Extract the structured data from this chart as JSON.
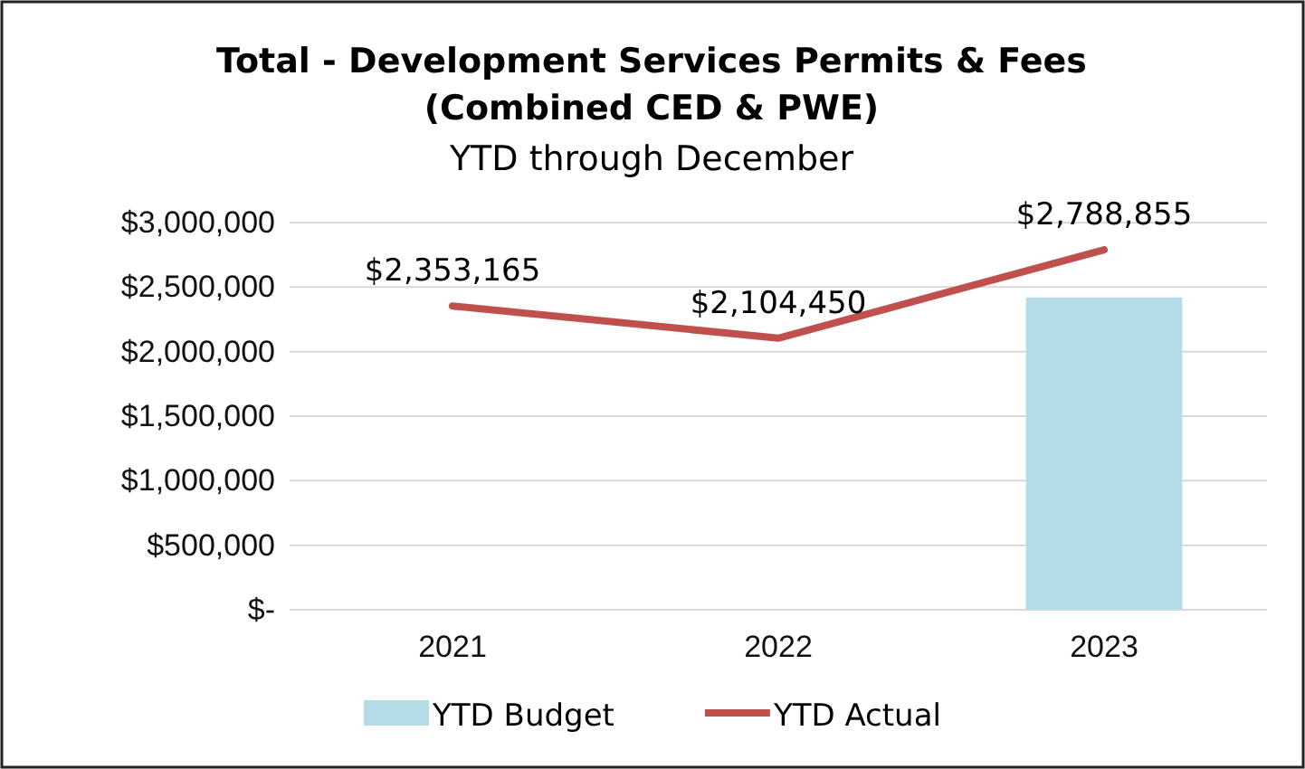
{
  "chart_data": {
    "type": "bar",
    "title": "Total - Development Services Permits & Fees\n(Combined CED & PWE)",
    "subtitle": "YTD through December",
    "categories": [
      "2021",
      "2022",
      "2023"
    ],
    "series": [
      {
        "name": "YTD Budget",
        "color": "#b4dce6",
        "values": [
          null,
          null,
          2420000
        ]
      },
      {
        "name": "YTD Actual",
        "type": "line",
        "color": "#c0504d",
        "values": [
          2353165,
          2104450,
          2788855
        ],
        "value_labels": [
          "$2,353,165",
          "$2,104,450",
          "$2,788,855"
        ]
      }
    ],
    "ylim": [
      0,
      3000000
    ],
    "yticks": [
      {
        "value": 0,
        "label": "$-"
      },
      {
        "value": 500000,
        "label": "$500,000"
      },
      {
        "value": 1000000,
        "label": "$1,000,000"
      },
      {
        "value": 1500000,
        "label": "$1,500,000"
      },
      {
        "value": 2000000,
        "label": "$2,000,000"
      },
      {
        "value": 2500000,
        "label": "$2,500,000"
      },
      {
        "value": 3000000,
        "label": "$3,000,000"
      }
    ],
    "grid": "y",
    "legend": "bottom",
    "marker": "none"
  }
}
